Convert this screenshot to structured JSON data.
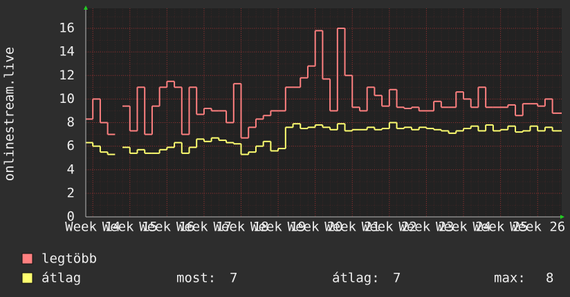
{
  "chart_data": {
    "type": "step-line",
    "y_label": "onlinestream.live",
    "x": [
      13.8,
      14.0,
      14.2,
      14.4,
      14.6,
      14.8,
      15.0,
      15.2,
      15.4,
      15.6,
      15.8,
      16.0,
      16.2,
      16.4,
      16.6,
      16.8,
      17.0,
      17.2,
      17.4,
      17.6,
      17.8,
      18.0,
      18.2,
      18.4,
      18.6,
      18.8,
      19.0,
      19.2,
      19.4,
      19.6,
      19.8,
      20.0,
      20.2,
      20.4,
      20.6,
      20.8,
      21.0,
      21.2,
      21.4,
      21.6,
      21.8,
      22.0,
      22.2,
      22.4,
      22.6,
      22.8,
      23.0,
      23.2,
      23.4,
      23.6,
      23.8,
      24.0,
      24.2,
      24.4,
      24.6,
      24.8,
      25.0,
      25.2,
      25.4,
      25.6,
      25.8,
      26.0,
      26.2,
      26.4
    ],
    "series": [
      {
        "name": "legtöbb",
        "color": "#ff8080",
        "values": [
          8.3,
          10,
          8,
          7,
          null,
          9.4,
          7.3,
          11,
          7,
          9.4,
          11,
          11.5,
          11,
          7,
          11,
          8.7,
          9.2,
          9,
          9,
          8,
          11.3,
          6.7,
          7.6,
          8.3,
          8.6,
          9,
          9,
          11,
          11,
          11.8,
          12.8,
          15.8,
          11.7,
          9,
          16,
          12,
          9.3,
          9,
          11,
          10.3,
          9.4,
          10.8,
          9.3,
          9.2,
          9.3,
          9,
          9,
          9.8,
          9.3,
          9.3,
          10.6,
          10,
          9.3,
          11,
          9.3,
          9.3,
          9.3,
          9.5,
          8.6,
          9.6,
          9.6,
          9.4,
          10,
          8.8
        ]
      },
      {
        "name": "átlag",
        "color": "#ffff70",
        "values": [
          6.3,
          6.0,
          5.5,
          5.3,
          null,
          5.9,
          5.4,
          5.7,
          5.4,
          5.4,
          5.7,
          5.9,
          6.3,
          5.4,
          5.9,
          6.6,
          6.4,
          6.7,
          6.5,
          6.3,
          6.2,
          5.3,
          5.5,
          6.0,
          6.4,
          5.6,
          5.8,
          7.6,
          7.9,
          7.5,
          7.6,
          7.8,
          7.6,
          7.4,
          7.9,
          7.3,
          7.4,
          7.4,
          7.6,
          7.4,
          7.5,
          8.0,
          7.5,
          7.6,
          7.4,
          7.6,
          7.5,
          7.4,
          7.3,
          7.1,
          7.3,
          7.5,
          7.7,
          7.3,
          7.8,
          7.3,
          7.4,
          7.7,
          7.2,
          7.3,
          7.7,
          7.3,
          7.6,
          7.3
        ]
      }
    ],
    "xlim": [
      13.81,
      26.65
    ],
    "xticks": [
      {
        "value": 14,
        "label": "Week 14"
      },
      {
        "value": 15,
        "label": "Week 15"
      },
      {
        "value": 16,
        "label": "Week 16"
      },
      {
        "value": 17,
        "label": "Week 17"
      },
      {
        "value": 18,
        "label": "Week 18"
      },
      {
        "value": 19,
        "label": "Week 19"
      },
      {
        "value": 20,
        "label": "Week 20"
      },
      {
        "value": 21,
        "label": "Week 21"
      },
      {
        "value": 22,
        "label": "Week 22"
      },
      {
        "value": 23,
        "label": "Week 23"
      },
      {
        "value": 24,
        "label": "Week 24"
      },
      {
        "value": 25,
        "label": "Week 25"
      },
      {
        "value": 26,
        "label": "Week 26"
      }
    ],
    "ylim": [
      0,
      17.7
    ],
    "yticks": [
      0,
      2,
      4,
      6,
      8,
      10,
      12,
      14,
      16
    ],
    "grid": true,
    "stats": [
      {
        "label": "most:",
        "value": 7
      },
      {
        "label": "átlag:",
        "value": 7
      },
      {
        "label": "max:",
        "value": 8
      }
    ]
  }
}
